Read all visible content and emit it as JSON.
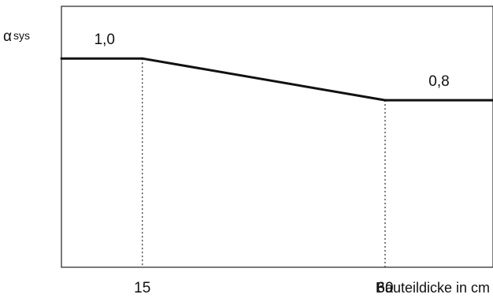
{
  "chart_data": {
    "type": "line",
    "ylabel_symbol": "α",
    "ylabel_subscript": "sys",
    "xlabel": "Bauteildicke in cm",
    "xlim": [
      0,
      80
    ],
    "ylim": [
      0,
      1.25
    ],
    "grid": false,
    "series": [
      {
        "x": [
          0,
          15,
          60,
          80
        ],
        "y": [
          1.0,
          1.0,
          0.8,
          0.8
        ]
      }
    ],
    "x_ticks": [
      15,
      60
    ],
    "x_tick_labels": [
      "15",
      "60"
    ],
    "guide_lines_x": [
      15,
      60
    ],
    "annotations": [
      {
        "x": 8,
        "y": 1.0,
        "text": "1,0"
      },
      {
        "x": 70,
        "y": 0.8,
        "text": "0,8"
      }
    ]
  }
}
